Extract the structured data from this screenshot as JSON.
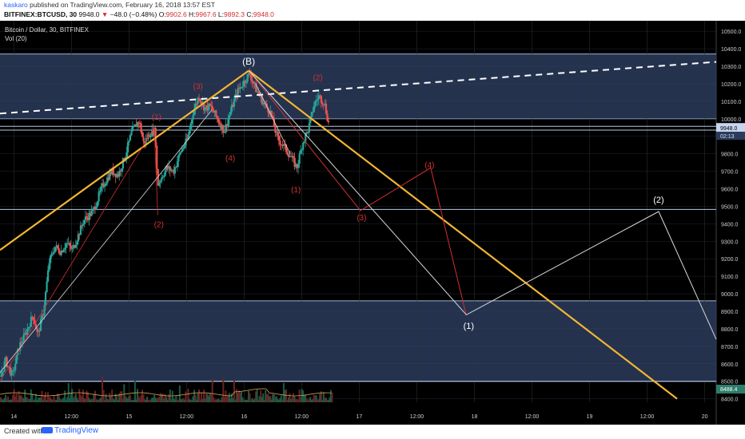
{
  "header": {
    "author": "kaskaro",
    "published": "published on TradingView.com, February 16, 2018 13:57 EST",
    "symbol": "BITFINEX:BTCUSD, 30",
    "last": "9948.0",
    "arrow": "▼",
    "change": "−48.0 (−0.48%)",
    "ohlc": [
      {
        "k": "O:",
        "v": "9902.6"
      },
      {
        "k": "H:",
        "v": "9967.6"
      },
      {
        "k": "L:",
        "v": "9892.3"
      },
      {
        "k": "C:",
        "v": "9948.0"
      }
    ]
  },
  "legend": {
    "title": "Bitcoin / Dollar, 30, BITFINEX",
    "vol": "Vol (20)"
  },
  "footer": {
    "created": "Created with",
    "brand": "TradingView"
  },
  "colors": {
    "background": "#000000",
    "zone": "#2a3b5c",
    "up": "#26a69a",
    "down": "#ef5350",
    "trendline": "#f2b632",
    "wave_red": "#d32f2f",
    "wave_white": "#ffffff"
  },
  "chart_data": {
    "type": "candlestick",
    "symbol": "BTCUSD",
    "timeframe": "30",
    "ylim": [
      8380,
      10560
    ],
    "y_ticks": [
      10500,
      10400,
      10300,
      10200,
      10100,
      10000,
      9900,
      9800,
      9700,
      9600,
      9500,
      9400,
      9300,
      9200,
      9100,
      9000,
      8900,
      8800,
      8700,
      8600,
      8500,
      8400
    ],
    "x_ticks": [
      {
        "label": "14",
        "t": 0.5
      },
      {
        "label": "12:00",
        "t": 1.0
      },
      {
        "label": "15",
        "t": 1.5
      },
      {
        "label": "12:00",
        "t": 2.0
      },
      {
        "label": "16",
        "t": 2.5
      },
      {
        "label": "12:00",
        "t": 3.0
      },
      {
        "label": "17",
        "t": 3.5
      },
      {
        "label": "12:00",
        "t": 4.0
      },
      {
        "label": "18",
        "t": 4.5
      },
      {
        "label": "12:00",
        "t": 5.0
      },
      {
        "label": "19",
        "t": 5.5
      },
      {
        "label": "12:00",
        "t": 6.0
      },
      {
        "label": "20",
        "t": 6.5
      }
    ],
    "t_range": [
      0.38,
      6.6
    ],
    "last_price": {
      "value": 9948.0,
      "label": "9948.0",
      "countdown": "02:13"
    },
    "vol_ma_label": "8488.4",
    "zones": [
      [
        10000,
        10370
      ],
      [
        8500,
        8960
      ]
    ],
    "hlines": [
      9957,
      9935,
      9482,
      8500
    ],
    "dashed_line": {
      "t1": 0.38,
      "p1": 10030,
      "t2": 6.6,
      "p2": 10325
    },
    "trendlines": [
      {
        "t1": 0.38,
        "p1": 9250,
        "t2": 2.54,
        "p2": 10275
      },
      {
        "t1": 2.54,
        "p1": 10275,
        "t2": 6.26,
        "p2": 8400
      }
    ],
    "red_wave": [
      {
        "t": 2.54,
        "p": 10275
      },
      {
        "t": 3.51,
        "p": 9475
      },
      {
        "t": 4.12,
        "p": 9720
      },
      {
        "t": 4.43,
        "p": 8875
      }
    ],
    "white_path": [
      {
        "t": 2.54,
        "p": 10275
      },
      {
        "t": 4.43,
        "p": 8880
      },
      {
        "t": 6.1,
        "p": 9470
      },
      {
        "t": 6.6,
        "p": 8740
      }
    ],
    "red_thin_lines": [
      [
        {
          "t": 0.38,
          "p": 8500
        },
        {
          "t": 1.72,
          "p": 9950
        }
      ],
      [
        {
          "t": 1.72,
          "p": 9950
        },
        {
          "t": 1.75,
          "p": 9450
        }
      ]
    ],
    "white_thin_lines": [
      [
        {
          "t": 0.38,
          "p": 8550
        },
        {
          "t": 2.22,
          "p": 10050
        }
      ],
      [
        {
          "t": 2.6,
          "p": 10200
        },
        {
          "t": 2.9,
          "p": 9800
        }
      ]
    ],
    "labels": [
      {
        "text": "(B)",
        "t": 2.54,
        "p": 10310,
        "color": "#ffffff",
        "size": 12
      },
      {
        "text": "(3)",
        "t": 2.1,
        "p": 10170,
        "color": "#d32f2f",
        "size": 10
      },
      {
        "text": "(1)",
        "t": 1.74,
        "p": 9995,
        "color": "#d32f2f",
        "size": 10
      },
      {
        "text": "(2)",
        "t": 1.76,
        "p": 9380,
        "color": "#d32f2f",
        "size": 10
      },
      {
        "text": "(4)",
        "t": 2.38,
        "p": 9760,
        "color": "#d32f2f",
        "size": 10
      },
      {
        "text": "(1)",
        "t": 2.95,
        "p": 9580,
        "color": "#d32f2f",
        "size": 10
      },
      {
        "text": "(2)",
        "t": 3.14,
        "p": 10220,
        "color": "#d32f2f",
        "size": 10
      },
      {
        "text": "(3)",
        "t": 3.52,
        "p": 9420,
        "color": "#d32f2f",
        "size": 10
      },
      {
        "text": "(4)",
        "t": 4.11,
        "p": 9720,
        "color": "#d32f2f",
        "size": 10
      },
      {
        "text": "(1)",
        "t": 4.45,
        "p": 8800,
        "color": "#ffffff",
        "size": 11
      },
      {
        "text": "(2)",
        "t": 6.1,
        "p": 9520,
        "color": "#ffffff",
        "size": 11
      }
    ],
    "candles_segments": [
      {
        "t": 0.38,
        "p": 8530
      },
      {
        "t": 0.42,
        "p": 8620
      },
      {
        "t": 0.48,
        "p": 8530
      },
      {
        "t": 0.54,
        "p": 8700
      },
      {
        "t": 0.6,
        "p": 8780
      },
      {
        "t": 0.66,
        "p": 8880
      },
      {
        "t": 0.7,
        "p": 8760
      },
      {
        "t": 0.75,
        "p": 8900
      },
      {
        "t": 0.8,
        "p": 9180
      },
      {
        "t": 0.85,
        "p": 9270
      },
      {
        "t": 0.9,
        "p": 9240
      },
      {
        "t": 0.95,
        "p": 9290
      },
      {
        "t": 1.0,
        "p": 9250
      },
      {
        "t": 1.05,
        "p": 9330
      },
      {
        "t": 1.1,
        "p": 9420
      },
      {
        "t": 1.18,
        "p": 9470
      },
      {
        "t": 1.26,
        "p": 9610
      },
      {
        "t": 1.34,
        "p": 9700
      },
      {
        "t": 1.4,
        "p": 9680
      },
      {
        "t": 1.46,
        "p": 9790
      },
      {
        "t": 1.52,
        "p": 9930
      },
      {
        "t": 1.58,
        "p": 9990
      },
      {
        "t": 1.62,
        "p": 9860
      },
      {
        "t": 1.68,
        "p": 9920
      },
      {
        "t": 1.72,
        "p": 9930
      },
      {
        "t": 1.74,
        "p": 9620
      },
      {
        "t": 1.77,
        "p": 9660
      },
      {
        "t": 1.82,
        "p": 9720
      },
      {
        "t": 1.88,
        "p": 9700
      },
      {
        "t": 1.94,
        "p": 9810
      },
      {
        "t": 2.0,
        "p": 9880
      },
      {
        "t": 2.05,
        "p": 10040
      },
      {
        "t": 2.1,
        "p": 10130
      },
      {
        "t": 2.15,
        "p": 10060
      },
      {
        "t": 2.2,
        "p": 10070
      },
      {
        "t": 2.26,
        "p": 10000
      },
      {
        "t": 2.32,
        "p": 9930
      },
      {
        "t": 2.38,
        "p": 10050
      },
      {
        "t": 2.43,
        "p": 10150
      },
      {
        "t": 2.48,
        "p": 10200
      },
      {
        "t": 2.54,
        "p": 10260
      },
      {
        "t": 2.6,
        "p": 10160
      },
      {
        "t": 2.66,
        "p": 10090
      },
      {
        "t": 2.72,
        "p": 10040
      },
      {
        "t": 2.78,
        "p": 9890
      },
      {
        "t": 2.84,
        "p": 9840
      },
      {
        "t": 2.9,
        "p": 9780
      },
      {
        "t": 2.95,
        "p": 9720
      },
      {
        "t": 3.0,
        "p": 9860
      },
      {
        "t": 3.05,
        "p": 9940
      },
      {
        "t": 3.1,
        "p": 10080
      },
      {
        "t": 3.14,
        "p": 10130
      },
      {
        "t": 3.19,
        "p": 10090
      },
      {
        "t": 3.23,
        "p": 9960
      }
    ]
  }
}
